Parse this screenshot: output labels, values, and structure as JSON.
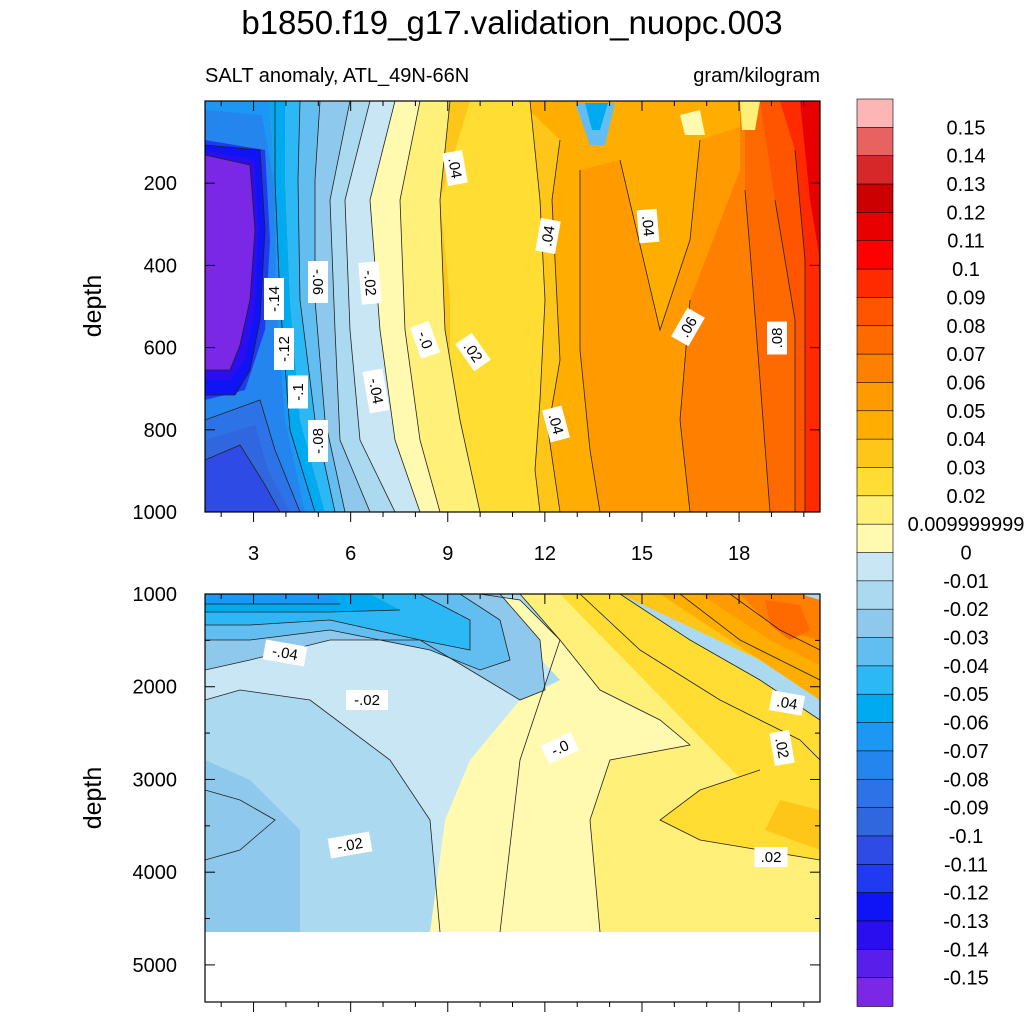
{
  "chart_data": {
    "type": "contour",
    "title": "b1850.f19_g17.validation_nuopc.003",
    "variable_label": "SALT anomaly, ATL_49N-66N",
    "units_label": "gram/kilogram",
    "colorbar": {
      "levels": [
        "0.15",
        "0.14",
        "0.13",
        "0.12",
        "0.11",
        "0.1",
        "0.09",
        "0.08",
        "0.07",
        "0.06",
        "0.05",
        "0.04",
        "0.03",
        "0.02",
        "0.009999999",
        "0",
        "-0.01",
        "-0.02",
        "-0.03",
        "-0.04",
        "-0.05",
        "-0.06",
        "-0.07",
        "-0.08",
        "-0.09",
        "-0.1",
        "-0.11",
        "-0.12",
        "-0.13",
        "-0.14",
        "-0.15"
      ],
      "colors": [
        "#FDB6B6",
        "#E86262",
        "#D62828",
        "#CC0000",
        "#E80000",
        "#FF0000",
        "#FF2A00",
        "#FF5500",
        "#FF6A00",
        "#FF7F00",
        "#FF9A00",
        "#FFAE00",
        "#FFC61A",
        "#FFDD33",
        "#FFF07A",
        "#FFFAB0",
        "#C8E6F4",
        "#AAD9F0",
        "#8EC8EC",
        "#62BEF0",
        "#2BB8F5",
        "#00AAF0",
        "#1C97F4",
        "#2585EF",
        "#2E72E8",
        "#3066DE",
        "#2E4BE6",
        "#1F3AF0",
        "#0E14F5",
        "#2A0EF0",
        "#5A1EEA",
        "#7A28E6"
      ]
    },
    "panels": [
      {
        "id": "upper",
        "xlabel": "",
        "ylabel": "depth",
        "ylim": [
          0,
          1000
        ],
        "yticks": [
          "200",
          "400",
          "600",
          "800",
          "1000"
        ],
        "xlim": [
          1.5,
          20.5
        ],
        "xticks": [
          "3",
          "6",
          "9",
          "12",
          "15",
          "18"
        ],
        "contour_labels": [
          ".04",
          ".04",
          ".04",
          "-.14",
          "-.06",
          "-.02",
          "-.12",
          "-.0",
          ".02",
          ".06",
          ".08",
          "-.1",
          "-.04",
          ".04",
          "-.08"
        ]
      },
      {
        "id": "lower",
        "xlabel": "",
        "ylabel": "depth",
        "ylim": [
          1000,
          5400
        ],
        "yticks": [
          "1000",
          "2000",
          "3000",
          "4000",
          "5000"
        ],
        "xlim": [
          1.5,
          20.5
        ],
        "xticks": [],
        "contour_labels": [
          "-.04",
          "-.02",
          ".04",
          "-.0",
          ".02",
          "-.02",
          ".02"
        ]
      }
    ]
  }
}
